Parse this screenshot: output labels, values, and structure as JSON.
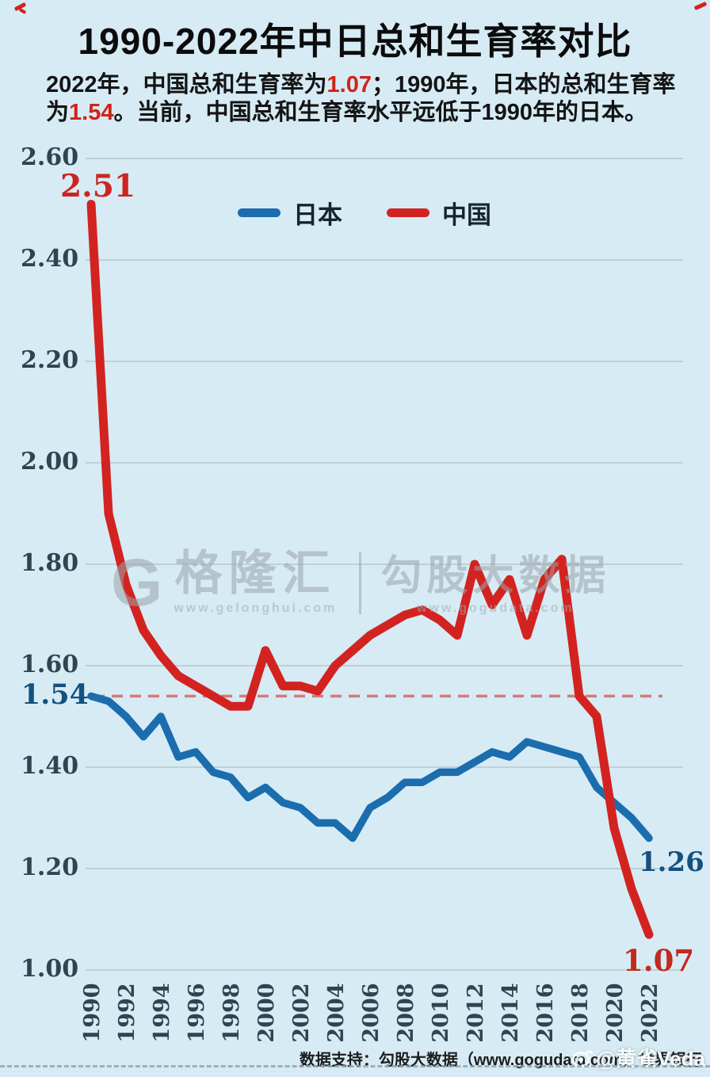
{
  "header": {
    "title": "1990-2022年中日总和生育率对比",
    "sub": {
      "l1a": "2022年，中国总和生育率为",
      "l1b": "1.07",
      "l1c": "；1990年，日本的总和生育率",
      "l2a": "为",
      "l2b": "1.54",
      "l2c": "。当前，中国总和生育率水平远低于1990年的日本。"
    }
  },
  "legend": {
    "japan": "日本",
    "china": "中国"
  },
  "annotations": {
    "china_start": "2.51",
    "japan_start": "1.54",
    "japan_end": "1.26",
    "china_end": "1.07"
  },
  "watermark": {
    "glyph": "G",
    "brand1": "格隆汇",
    "url1": "www.gelonghui.com",
    "brand2": "勾股大数据",
    "url2": "www.gogudata.com"
  },
  "footer": {
    "credit": "数据支持：勾股大数据（www.gogudata.com）世界银行",
    "overlay": "@黄雀Veda"
  },
  "colors": {
    "background": "#d7ebf5",
    "japan": "#1b6dad",
    "china": "#d32320",
    "grid": "#b9c7cf",
    "dashed_ref": "#d4564c",
    "tick": "#2e4450"
  },
  "chart_data": {
    "type": "line",
    "title": "1990-2022年中日总和生育率对比",
    "xlabel": "",
    "ylabel": "",
    "ylim": [
      1.0,
      2.6
    ],
    "grid": true,
    "legend_position": "top-center",
    "reference_line": {
      "value": 1.54,
      "style": "dashed"
    },
    "x": [
      1990,
      1991,
      1992,
      1993,
      1994,
      1995,
      1996,
      1997,
      1998,
      1999,
      2000,
      2001,
      2002,
      2003,
      2004,
      2005,
      2006,
      2007,
      2008,
      2009,
      2010,
      2011,
      2012,
      2013,
      2014,
      2015,
      2016,
      2017,
      2018,
      2019,
      2020,
      2021,
      2022
    ],
    "xtick_labels": [
      "1990",
      "1992",
      "1994",
      "1996",
      "1998",
      "2000",
      "2002",
      "2004",
      "2006",
      "2008",
      "2010",
      "2012",
      "2014",
      "2016",
      "2018",
      "2020",
      "2022"
    ],
    "ytick_labels": [
      "2.60",
      "2.40",
      "2.20",
      "2.00",
      "1.80",
      "1.60",
      "1.40",
      "1.20",
      "1.00"
    ],
    "ytick_values": [
      2.6,
      2.4,
      2.2,
      2.0,
      1.8,
      1.6,
      1.4,
      1.2,
      1.0
    ],
    "series": [
      {
        "name": "日本",
        "color": "#1b6dad",
        "values": [
          1.54,
          1.53,
          1.5,
          1.46,
          1.5,
          1.42,
          1.43,
          1.39,
          1.38,
          1.34,
          1.36,
          1.33,
          1.32,
          1.29,
          1.29,
          1.26,
          1.32,
          1.34,
          1.37,
          1.37,
          1.39,
          1.39,
          1.41,
          1.43,
          1.42,
          1.45,
          1.44,
          1.43,
          1.42,
          1.36,
          1.33,
          1.3,
          1.26
        ]
      },
      {
        "name": "中国",
        "color": "#d32320",
        "values": [
          2.51,
          1.9,
          1.76,
          1.67,
          1.62,
          1.58,
          1.56,
          1.54,
          1.52,
          1.52,
          1.63,
          1.56,
          1.56,
          1.55,
          1.6,
          1.63,
          1.66,
          1.68,
          1.7,
          1.71,
          1.69,
          1.66,
          1.8,
          1.72,
          1.77,
          1.66,
          1.77,
          1.81,
          1.54,
          1.5,
          1.28,
          1.16,
          1.07
        ]
      }
    ]
  }
}
